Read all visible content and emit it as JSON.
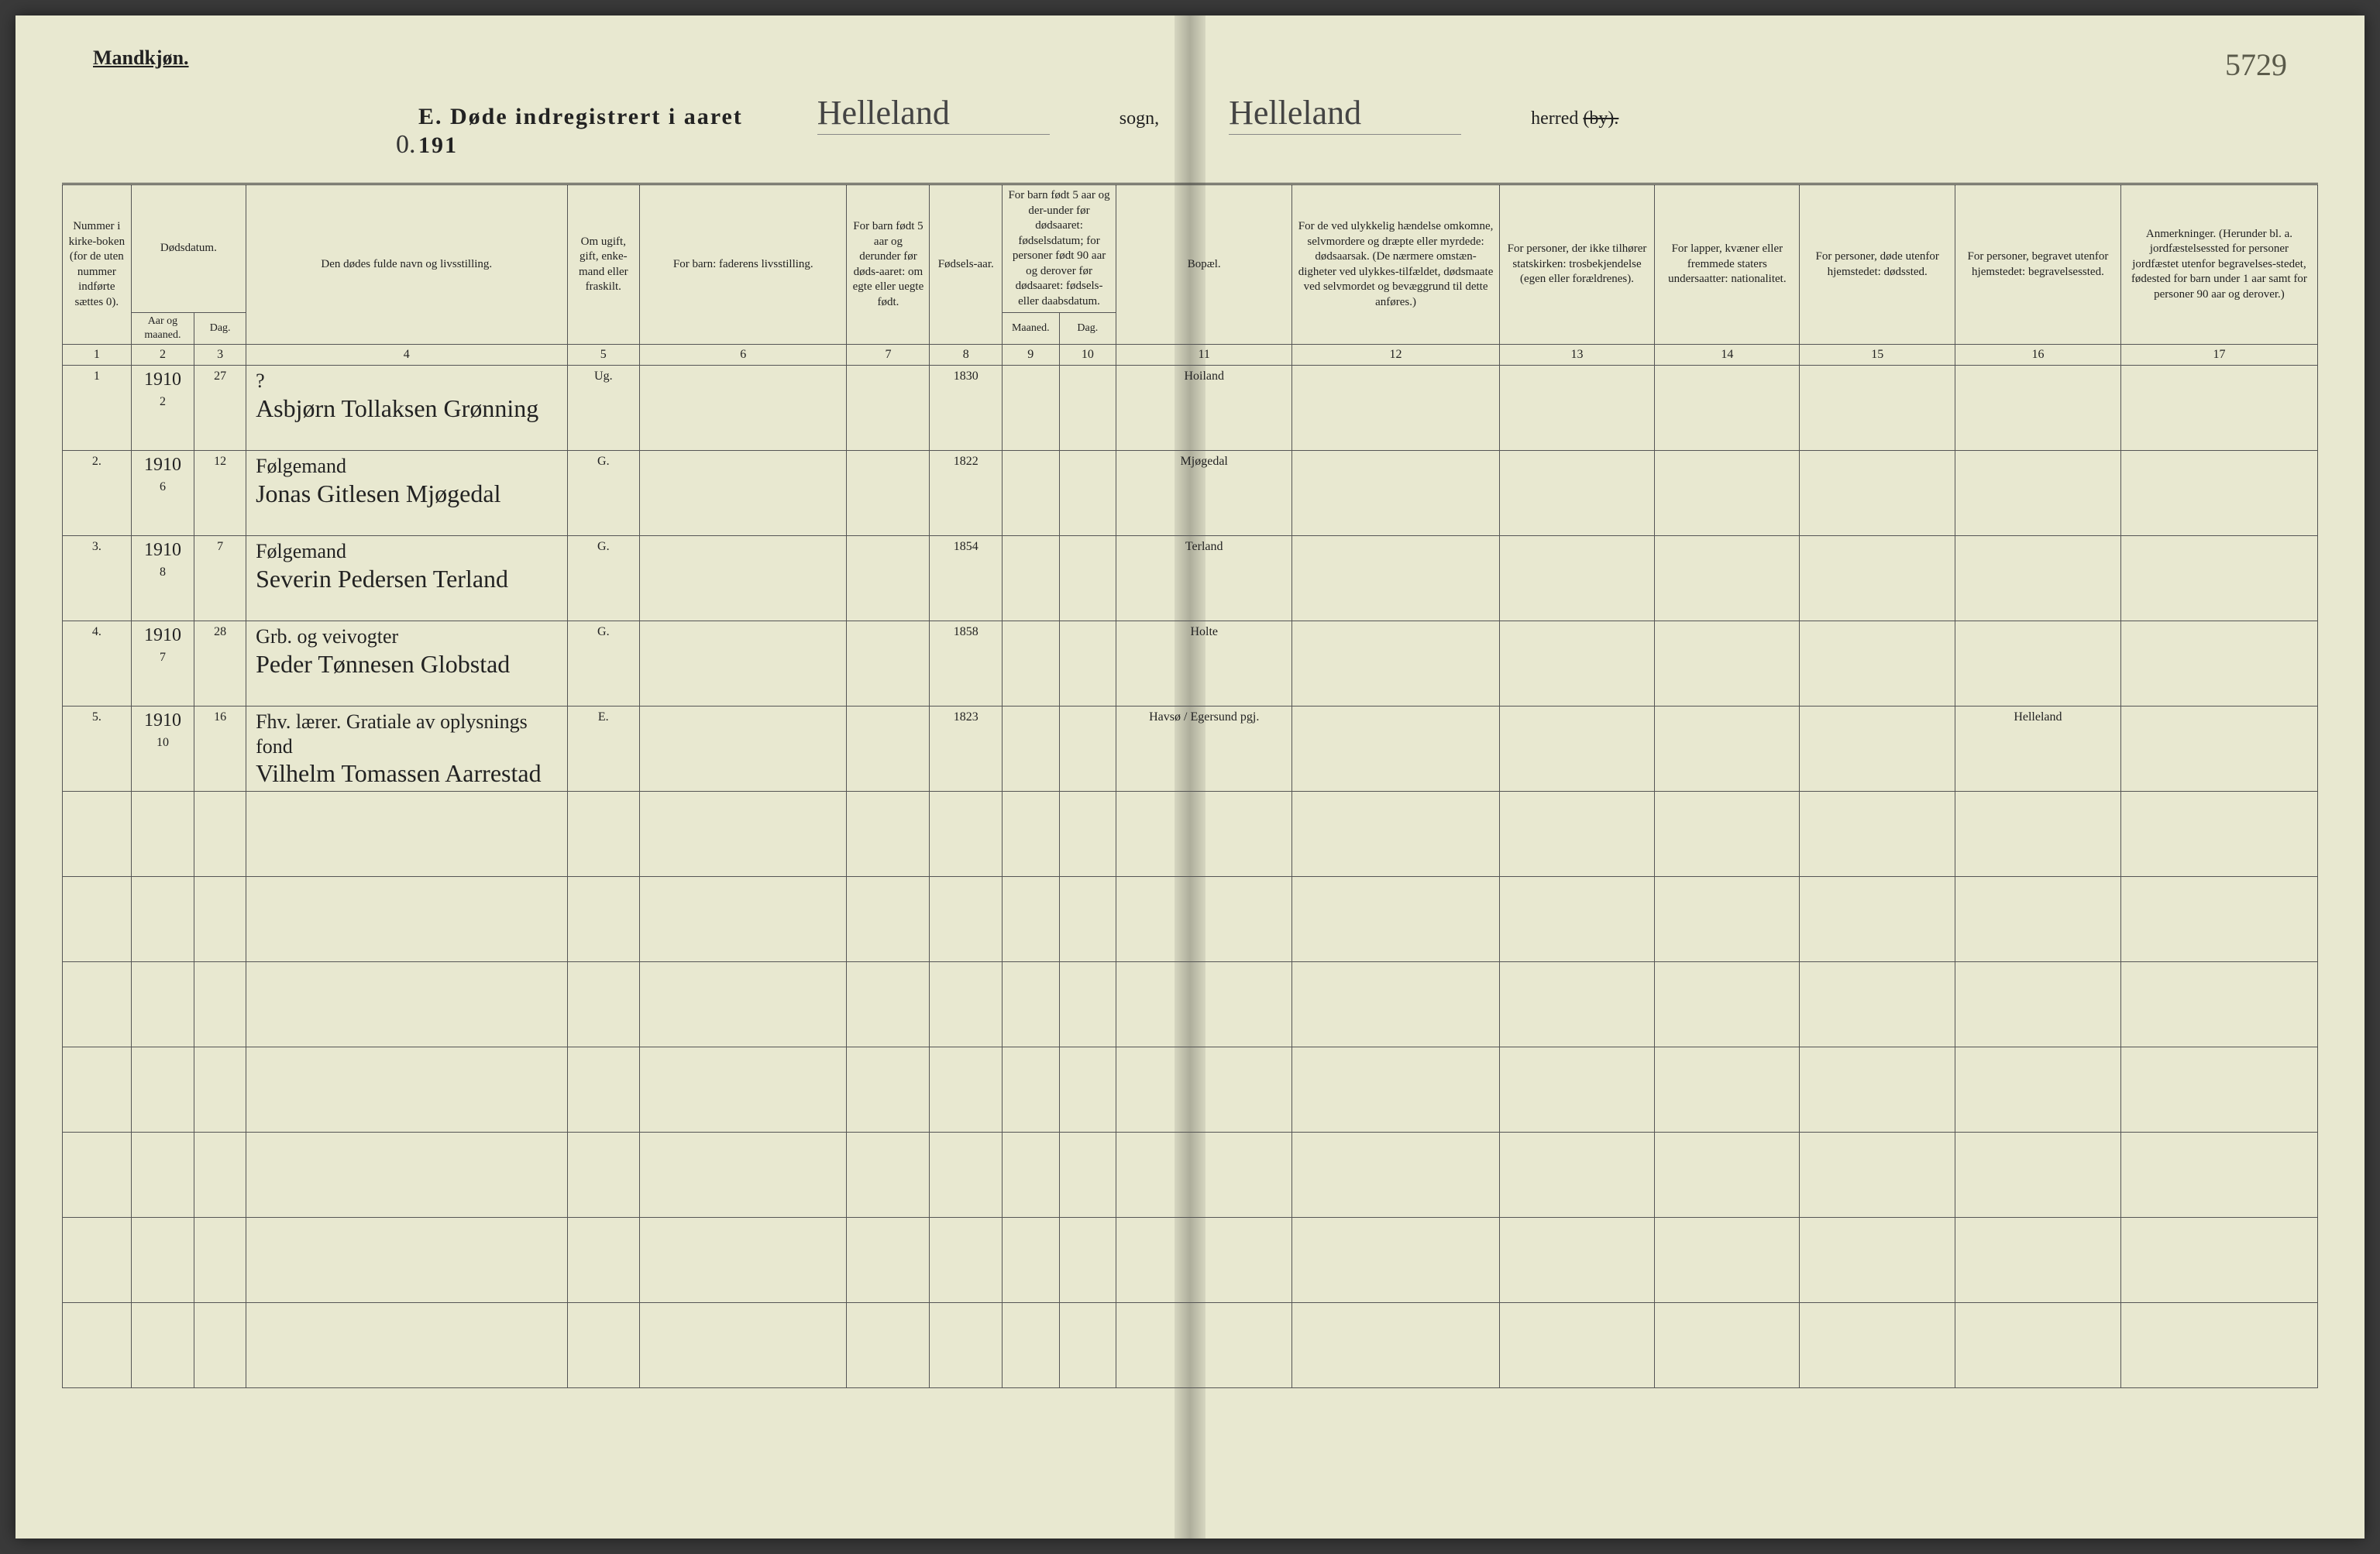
{
  "page": {
    "gender_label": "Mandkjøn.",
    "hand_page_number": "5729",
    "title_prefix": "E.  Døde indregistrert i aaret 191",
    "title_year_hand": "0.",
    "parish_hand": "Helleland",
    "parish_label": "sogn,",
    "district_hand": "Helleland",
    "district_label_1": "herred",
    "district_label_2": "(by).",
    "colors": {
      "paper": "#e8e8d0",
      "ink": "#222222",
      "hand_ink": "#2a2a2a",
      "rule": "#555555"
    }
  },
  "columns": {
    "c1": "Nummer i kirke-boken (for de uten nummer indførte sættes 0).",
    "c2_group": "Dødsdatum.",
    "c2a": "Aar og maaned.",
    "c2b": "Dag.",
    "c4": "Den dødes fulde navn og livsstilling.",
    "c5": "Om ugift, gift, enke-mand eller fraskilt.",
    "c6": "For barn: faderens livsstilling.",
    "c7": "For barn født 5 aar og derunder før døds-aaret: om egte eller uegte født.",
    "c8": "Fødsels-aar.",
    "c9_10_group": "For barn født 5 aar og der-under før dødsaaret: fødselsdatum; for personer født 90 aar og derover før dødsaaret: fødsels- eller daabsdatum.",
    "c9": "Maaned.",
    "c10": "Dag.",
    "c11": "Bopæl.",
    "c12": "For de ved ulykkelig hændelse omkomne, selvmordere og dræpte eller myrdede: dødsaarsak. (De nærmere omstæn-digheter ved ulykkes-tilfældet, dødsmaate ved selvmordet og bevæggrund til dette anføres.)",
    "c13": "For personer, der ikke tilhører statskirken: trosbekjendelse (egen eller forældrenes).",
    "c14": "For lapper, kvæner eller fremmede staters undersaatter: nationalitet.",
    "c15": "For personer, døde utenfor hjemstedet: dødssted.",
    "c16": "For personer, begravet utenfor hjemstedet: begravelsessted.",
    "c17": "Anmerkninger. (Herunder bl. a. jordfæstelsessted for personer jordfæstet utenfor begravelses-stedet, fødested for barn under 1 aar samt for personer 90 aar og derover.)"
  },
  "colnums": [
    "1",
    "2",
    "3",
    "4",
    "5",
    "6",
    "7",
    "8",
    "9",
    "10",
    "11",
    "12",
    "13",
    "14",
    "15",
    "16",
    "17"
  ],
  "rows": [
    {
      "num": "1",
      "year_above": "1910",
      "month": "2",
      "day": "27",
      "occupation": "?",
      "name": "Asbjørn Tollaksen Grønning",
      "status": "Ug.",
      "father": "",
      "legit": "",
      "birth_year": "1830",
      "bm": "",
      "bd": "",
      "residence": "Hoiland",
      "cause": "",
      "faith": "",
      "nat": "",
      "deathplace": "",
      "burial": "",
      "remarks": ""
    },
    {
      "num": "2.",
      "year_above": "1910",
      "month": "6",
      "day": "12",
      "occupation": "Følgemand",
      "name": "Jonas Gitlesen Mjøgedal",
      "status": "G.",
      "father": "",
      "legit": "",
      "birth_year": "1822",
      "bm": "",
      "bd": "",
      "residence": "Mjøgedal",
      "cause": "",
      "faith": "",
      "nat": "",
      "deathplace": "",
      "burial": "",
      "remarks": ""
    },
    {
      "num": "3.",
      "year_above": "1910",
      "month": "8",
      "day": "7",
      "occupation": "Følgemand",
      "name": "Severin Pedersen Terland",
      "status": "G.",
      "father": "",
      "legit": "",
      "birth_year": "1854",
      "bm": "",
      "bd": "",
      "residence": "Terland",
      "cause": "",
      "faith": "",
      "nat": "",
      "deathplace": "",
      "burial": "",
      "remarks": ""
    },
    {
      "num": "4.",
      "year_above": "1910",
      "month": "7",
      "day": "28",
      "occupation": "Grb. og veivogter",
      "name": "Peder Tønnesen Globstad",
      "status": "G.",
      "father": "",
      "legit": "",
      "birth_year": "1858",
      "bm": "",
      "bd": "",
      "residence": "Holte",
      "cause": "",
      "faith": "",
      "nat": "",
      "deathplace": "",
      "burial": "",
      "remarks": ""
    },
    {
      "num": "5.",
      "year_above": "1910",
      "month": "10",
      "day": "16",
      "occupation": "Fhv. lærer. Gratiale av oplysnings fond",
      "name": "Vilhelm Tomassen Aarrestad",
      "status": "E.",
      "father": "",
      "legit": "",
      "birth_year": "1823",
      "bm": "",
      "bd": "",
      "residence": "Havsø / Egersund pgj.",
      "cause": "",
      "faith": "",
      "nat": "",
      "deathplace": "",
      "burial": "Helleland",
      "remarks": ""
    }
  ],
  "empty_rows": 7
}
